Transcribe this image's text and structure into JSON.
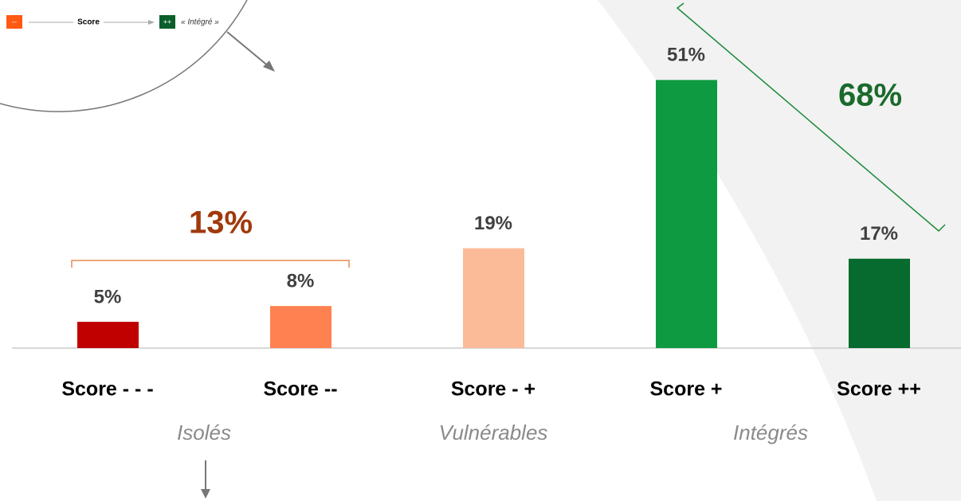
{
  "chart_data": {
    "type": "bar",
    "categories": [
      "Score - - -",
      "Score --",
      "Score - +",
      "Score +",
      "Score ++"
    ],
    "values": [
      5,
      8,
      19,
      51,
      17
    ],
    "value_labels": [
      "5%",
      "8%",
      "19%",
      "51%",
      "17%"
    ],
    "colors": [
      "#c00000",
      "#ff8050",
      "#fcbb98",
      "#0e9a40",
      "#076a2e"
    ],
    "ylim": [
      0,
      60
    ],
    "groups": [
      {
        "label": "Isolés"
      },
      {
        "label": "Vulnérables"
      },
      {
        "label": "Intégrés"
      }
    ],
    "annotations": [
      {
        "text": "13%",
        "color": "#a0390c"
      },
      {
        "text": "68%",
        "color": "#1b6a2c"
      }
    ],
    "legend": {
      "low": "--",
      "axis": "Score",
      "high": "++",
      "high_label": "« Intégré »"
    }
  }
}
